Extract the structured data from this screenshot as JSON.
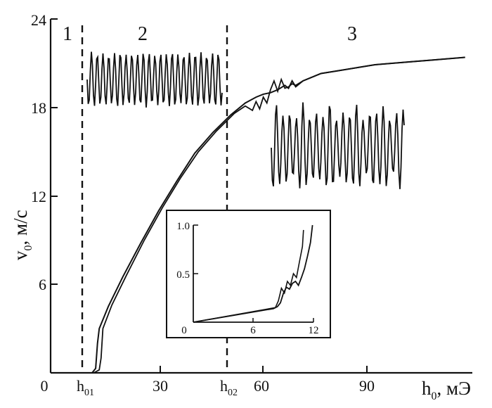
{
  "chart_data": [
    {
      "type": "line",
      "xlabel": {
        "main": "h",
        "sub": "0",
        "unit": ", мЭ"
      },
      "ylabel": {
        "main": "v",
        "sub": "0",
        "unit": ", м/с"
      },
      "xlim": [
        0,
        117
      ],
      "ylim": [
        0,
        24
      ],
      "x_ticks": [
        "0",
        "30",
        "60",
        "90"
      ],
      "y_ticks": [
        "6",
        "12",
        "18",
        "24"
      ],
      "x_special_ticks": [
        {
          "main": "h",
          "sub": "01",
          "value": 12
        },
        {
          "main": "h",
          "sub": "02",
          "value": 52
        }
      ],
      "vlines": [
        12,
        52
      ],
      "regions": [
        "1",
        "2",
        "3"
      ],
      "grid": false,
      "series": [
        {
          "x": [
            11.5,
            12.5,
            13,
            13.5,
            16,
            20,
            25,
            30,
            35,
            40,
            45,
            50,
            54,
            57,
            59,
            61,
            63,
            65,
            66,
            67,
            68,
            70,
            72,
            75,
            80,
            85,
            90,
            95,
            100,
            105,
            110,
            115
          ],
          "y": [
            0,
            0.3,
            2.0,
            3.0,
            4.5,
            6.5,
            8.8,
            11.0,
            13.0,
            14.9,
            16.3,
            17.5,
            18.3,
            18.7,
            18.9,
            19.0,
            19.2,
            19.5,
            19.3,
            19.8,
            19.4,
            19.8,
            20.0,
            20.3,
            20.5,
            20.7,
            20.9,
            21.0,
            21.1,
            21.2,
            21.3,
            21.4
          ]
        },
        {
          "x": [
            12,
            13.5,
            14,
            14.5,
            17,
            21,
            26,
            31,
            36,
            41,
            46,
            51,
            54,
            56,
            57,
            58,
            59,
            60,
            61,
            62,
            63,
            64,
            65,
            66,
            67,
            68,
            70,
            72,
            75,
            80,
            85,
            90,
            95,
            100,
            105,
            110,
            115
          ],
          "y": [
            0,
            0.2,
            1.0,
            3.0,
            4.6,
            6.6,
            9.0,
            11.2,
            13.2,
            15.0,
            16.4,
            17.6,
            18.1,
            17.8,
            18.4,
            17.9,
            18.7,
            18.3,
            19.2,
            19.8,
            19.1,
            19.9,
            19.3,
            19.4,
            19.6,
            19.5,
            19.8,
            20.0,
            20.3,
            20.5,
            20.7,
            20.9,
            21.0,
            21.1,
            21.2,
            21.3,
            21.4
          ]
        }
      ]
    },
    {
      "type": "line",
      "x_ticks": [
        "0",
        "6",
        "12"
      ],
      "y_ticks": [
        "0.5",
        "1.0"
      ],
      "xlim": [
        0,
        12
      ],
      "ylim": [
        0,
        1.0
      ],
      "series": [
        {
          "x": [
            0,
            8.0,
            8.4,
            8.7,
            9.0,
            9.3,
            9.6,
            9.9,
            10.2,
            10.5,
            10.8,
            11.1,
            11.4,
            11.7,
            11.9
          ],
          "y": [
            0,
            0.14,
            0.16,
            0.2,
            0.3,
            0.36,
            0.34,
            0.4,
            0.42,
            0.38,
            0.46,
            0.55,
            0.68,
            0.82,
            1.0
          ]
        },
        {
          "x": [
            0,
            8.2,
            8.5,
            8.8,
            9.1,
            9.4,
            9.7,
            10.0,
            10.3,
            10.6,
            10.9,
            11.0
          ],
          "y": [
            0,
            0.15,
            0.22,
            0.35,
            0.3,
            0.42,
            0.38,
            0.5,
            0.46,
            0.62,
            0.78,
            0.95
          ]
        }
      ]
    }
  ]
}
